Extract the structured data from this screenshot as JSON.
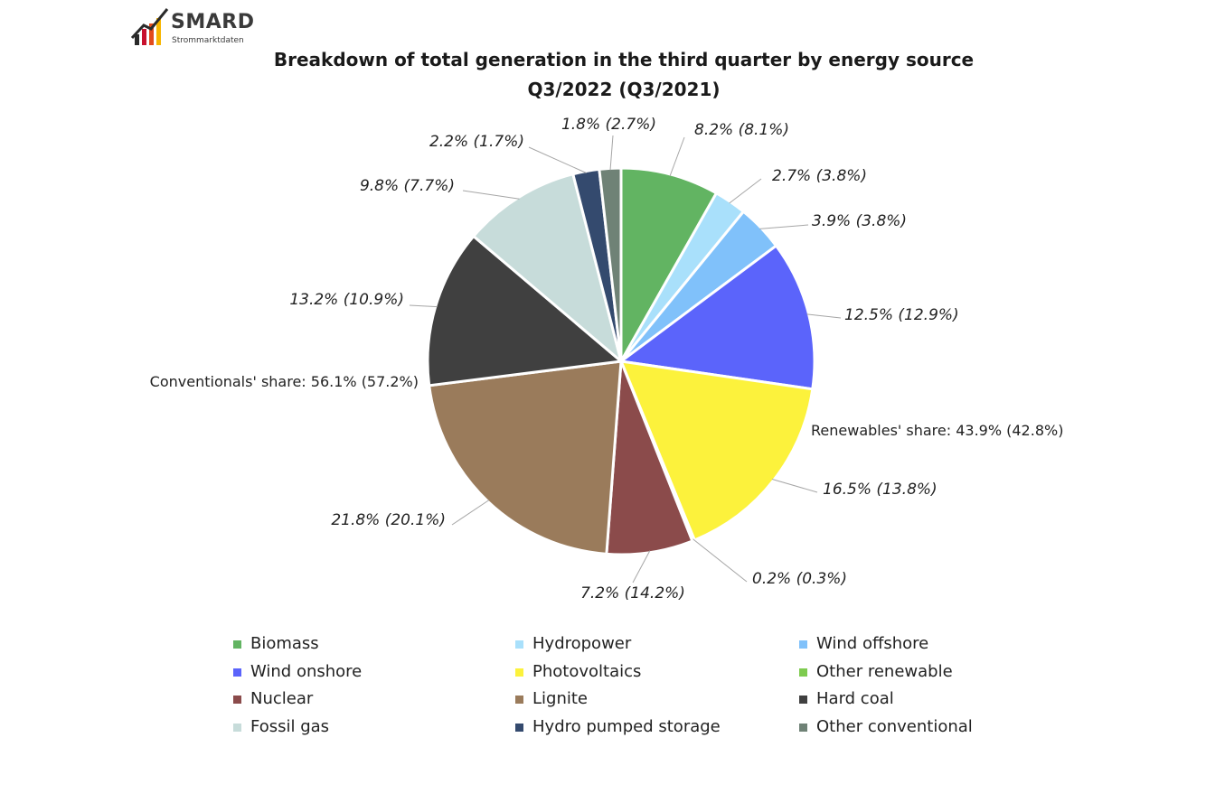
{
  "logo": {
    "name": "SMARD",
    "tagline": "Strommarktdaten"
  },
  "title_line1": "Breakdown of total generation in the third quarter by energy source",
  "title_line2": "Q3/2022 (Q3/2021)",
  "chart_data": {
    "type": "pie",
    "title": "Breakdown of total generation in the third quarter by energy source Q3/2022 (Q3/2021)",
    "categories": [
      "Biomass",
      "Hydropower",
      "Wind offshore",
      "Wind onshore",
      "Photovoltaics",
      "Other renewable",
      "Nuclear",
      "Lignite",
      "Hard coal",
      "Fossil gas",
      "Hydro pumped storage",
      "Other conventional"
    ],
    "series": [
      {
        "name": "Q3/2022",
        "values": [
          8.2,
          2.7,
          3.9,
          12.5,
          16.5,
          0.2,
          7.2,
          21.8,
          13.2,
          9.8,
          2.2,
          1.8
        ]
      },
      {
        "name": "Q3/2021",
        "values": [
          8.1,
          3.8,
          3.8,
          12.9,
          13.8,
          0.3,
          14.2,
          20.1,
          10.9,
          7.7,
          1.7,
          2.7
        ]
      }
    ],
    "data_labels": [
      "8.2% (8.1%)",
      "2.7% (3.8%)",
      "3.9% (3.8%)",
      "12.5% (12.9%)",
      "16.5% (13.8%)",
      "0.2% (0.3%)",
      "7.2% (14.2%)",
      "21.8% (20.1%)",
      "13.2% (10.9%)",
      "9.8% (7.7%)",
      "2.2% (1.7%)",
      "1.8% (2.7%)"
    ],
    "colors": [
      "#62b462",
      "#a9e0fb",
      "#80c1fa",
      "#5b64fb",
      "#fcf23c",
      "#7ecb4f",
      "#8b4b4b",
      "#9a7b5b",
      "#404040",
      "#c7dcda",
      "#344a6e",
      "#6f8276"
    ],
    "annotations": {
      "renewables": "Renewables' share: 43.9% (42.8%)",
      "conventionals": "Conventionals' share: 56.1% (57.2%)"
    },
    "legend_position": "bottom"
  }
}
